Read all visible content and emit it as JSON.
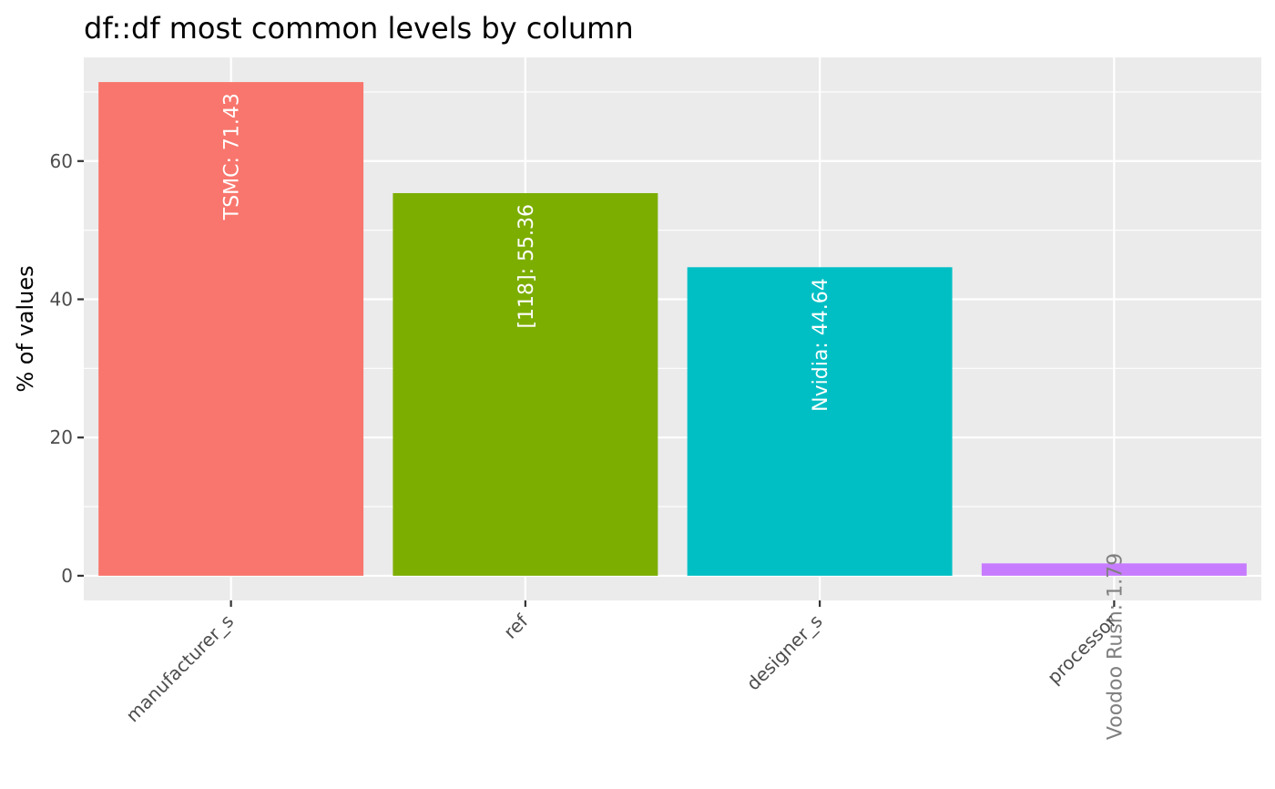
{
  "chart_data": {
    "type": "bar",
    "title": "df::df most common levels by column",
    "xlabel": "",
    "ylabel": "% of values",
    "categories": [
      "manufacturer_s",
      "ref",
      "designer_s",
      "processor"
    ],
    "values": [
      71.43,
      55.36,
      44.64,
      1.79
    ],
    "bar_labels": [
      "TSMC:  71.43",
      "[118]:  55.36",
      "Nvidia:  44.64",
      "Voodoo Rush:  1.79"
    ],
    "colors": [
      "#F8766D",
      "#7CAE00",
      "#00BFC4",
      "#C77CFF"
    ],
    "label_colors": [
      "#ffffff",
      "#ffffff",
      "#ffffff",
      "#808080"
    ],
    "ylim": [
      -3.57,
      75.0
    ],
    "yticks": [
      0,
      20,
      40,
      60
    ],
    "ytick_labels": [
      "0",
      "20",
      "40",
      "60"
    ],
    "grid": true,
    "legend": "none",
    "panel_background": "#EBEBEB",
    "grid_color": "#ffffff"
  }
}
